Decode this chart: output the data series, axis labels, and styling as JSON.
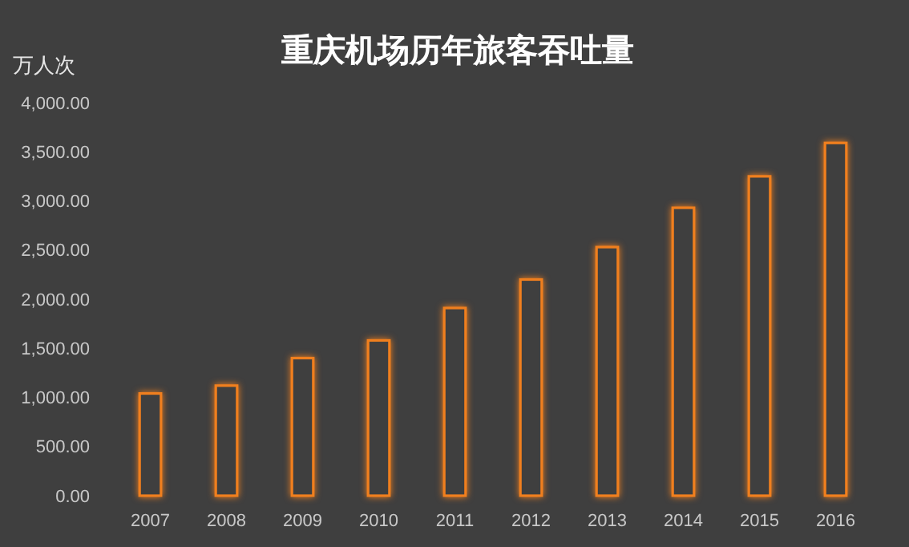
{
  "chart_data": {
    "type": "bar",
    "title": "重庆机场历年旅客吞吐量",
    "ylabel": "万人次",
    "categories": [
      "2007",
      "2008",
      "2009",
      "2010",
      "2011",
      "2012",
      "2013",
      "2014",
      "2015",
      "2016"
    ],
    "values": [
      1040,
      1120,
      1400,
      1580,
      1910,
      2200,
      2530,
      2930,
      3250,
      3590
    ],
    "color": "#f07f1e",
    "ylim": [
      0,
      4000
    ],
    "yticks": [
      {
        "value": 0,
        "label": "0.00"
      },
      {
        "value": 500,
        "label": "500.00"
      },
      {
        "value": 1000,
        "label": "1,000.00"
      },
      {
        "value": 1500,
        "label": "1,500.00"
      },
      {
        "value": 2000,
        "label": "2,000.00"
      },
      {
        "value": 2500,
        "label": "2,500.00"
      },
      {
        "value": 3000,
        "label": "3,000.00"
      },
      {
        "value": 3500,
        "label": "3,500.00"
      },
      {
        "value": 4000,
        "label": "4,000.00"
      }
    ],
    "grid": false
  }
}
